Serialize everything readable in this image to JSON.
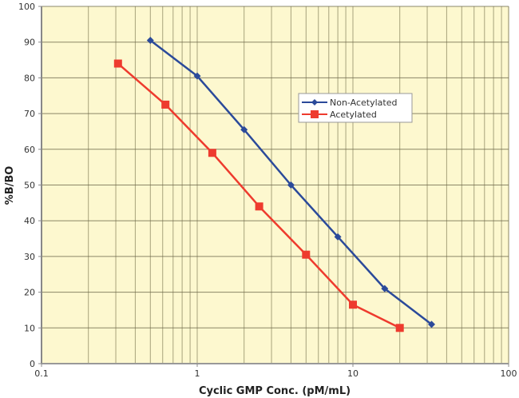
{
  "chart_data": {
    "type": "line",
    "title": "",
    "xlabel": "Cyclic GMP Conc. (pM/mL)",
    "ylabel": "%B/BO",
    "xscale": "log",
    "xlim": [
      0.1,
      100
    ],
    "ylim": [
      0,
      100
    ],
    "xticks": [
      0.1,
      1,
      10,
      100
    ],
    "xtick_labels": [
      "0.1",
      "1",
      "10",
      "100"
    ],
    "yticks": [
      0,
      10,
      20,
      30,
      40,
      50,
      60,
      70,
      80,
      90,
      100
    ],
    "ytick_labels": [
      "0",
      "10",
      "20",
      "30",
      "40",
      "50",
      "60",
      "70",
      "80",
      "90",
      "100"
    ],
    "grid": true,
    "legend_position": "inside-right-upper",
    "background": "#fdf8cf",
    "series": [
      {
        "name": "Non-Acetylated",
        "color": "#2b4a9a",
        "marker": "diamond",
        "x": [
          0.5,
          1,
          2,
          4,
          8,
          16,
          32
        ],
        "y": [
          90.5,
          80.5,
          65.5,
          50,
          35.5,
          21,
          11
        ]
      },
      {
        "name": "Acetylated",
        "color": "#ee3b2e",
        "marker": "square",
        "x": [
          0.31,
          0.625,
          1.25,
          2.5,
          5,
          10,
          20
        ],
        "y": [
          84,
          72.5,
          59,
          44,
          30.5,
          16.5,
          10
        ]
      }
    ]
  },
  "legend": {
    "items": [
      {
        "label": "Non-Acetylated"
      },
      {
        "label": "Acetylated"
      }
    ]
  },
  "axes": {
    "x_title": "Cyclic GMP Conc. (pM/mL)",
    "y_title": "%B/BO"
  }
}
